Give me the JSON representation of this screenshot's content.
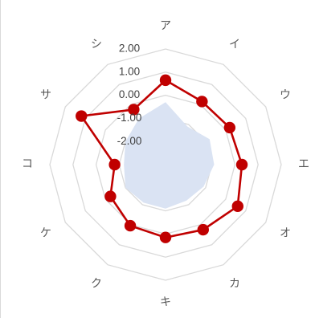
{
  "chart_data": {
    "type": "radar",
    "title": "",
    "categories": [
      "ア",
      "イ",
      "ウ",
      "エ",
      "オ",
      "カ",
      "キ",
      "ク",
      "ケ",
      "コ",
      "サ",
      "シ"
    ],
    "tick_labels": [
      "2.00",
      "1.00",
      "0.00",
      "-1.00",
      "-2.00"
    ],
    "rlim": [
      -3,
      2
    ],
    "grid": true,
    "series": [
      {
        "type": "area",
        "values": [
          -0.3,
          -1.1,
          -0.8,
          -0.9,
          -1.1,
          -1.2,
          -1.1,
          -1.1,
          -1.0,
          -1.2,
          -1.0,
          -0.7
        ],
        "color": "#dae3f3"
      },
      {
        "type": "line",
        "values": [
          0.65,
          0.15,
          0.2,
          0.3,
          0.6,
          0.25,
          0.15,
          0.05,
          -0.25,
          -0.8,
          1.2,
          -0.25
        ],
        "color": "#c00000"
      }
    ]
  }
}
